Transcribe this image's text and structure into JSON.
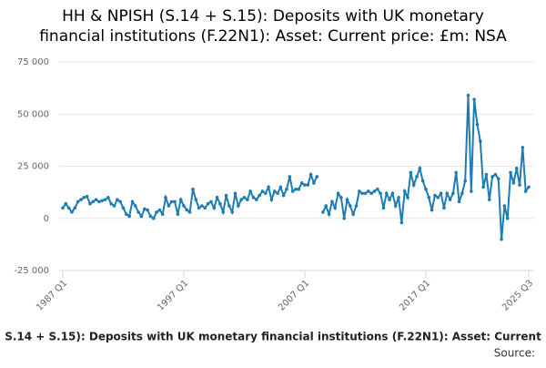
{
  "chart_data": {
    "type": "line",
    "title": [
      "HH & NPISH (S.14 + S.15): Deposits with UK monetary",
      "financial institutions (F.22N1): Asset: Current price: £m: NSA"
    ],
    "caption": "S.14 + S.15): Deposits with UK monetary financial institutions (F.22N1): Asset: Current",
    "source": "Source:",
    "categories": [
      "1987 Q1",
      null,
      null,
      null,
      null,
      null,
      null,
      null,
      null,
      null,
      null,
      null,
      null,
      null,
      null,
      null,
      null,
      null,
      null,
      null,
      null,
      null,
      null,
      null,
      null,
      null,
      null,
      null,
      null,
      null,
      null,
      null,
      null,
      null,
      null,
      null,
      null,
      null,
      null,
      null,
      "1997 Q1",
      null,
      null,
      null,
      null,
      null,
      null,
      null,
      null,
      null,
      null,
      null,
      null,
      null,
      null,
      null,
      null,
      null,
      null,
      null,
      null,
      null,
      null,
      null,
      null,
      null,
      null,
      null,
      null,
      null,
      null,
      null,
      null,
      null,
      null,
      null,
      null,
      null,
      null,
      null,
      "2007 Q1",
      null,
      null,
      null,
      null,
      null,
      null,
      null,
      null,
      null,
      null,
      null,
      null,
      null,
      null,
      null,
      null,
      null,
      null,
      null,
      null,
      null,
      null,
      null,
      null,
      null,
      null,
      null,
      null,
      null,
      null,
      null,
      null,
      null,
      null,
      null,
      null,
      null,
      null,
      null,
      "2017 Q1",
      null,
      null,
      null,
      null,
      null,
      null,
      null,
      null,
      null,
      null,
      null,
      null,
      null,
      null,
      null,
      null,
      null,
      null,
      null,
      null,
      null,
      null,
      null,
      null,
      null,
      null,
      null,
      null,
      null,
      null,
      null,
      null,
      null,
      "2025 Q3"
    ],
    "series": [
      {
        "name": "HH & NPISH deposits",
        "color": "#1d7cb3",
        "values": [
          5000,
          7000,
          5000,
          3000,
          5000,
          8000,
          9000,
          10000,
          10500,
          7000,
          8000,
          9000,
          8000,
          8500,
          9000,
          10000,
          7000,
          6000,
          9000,
          8000,
          5000,
          2000,
          1000,
          8000,
          6000,
          3000,
          1000,
          4500,
          4000,
          1000,
          0,
          3000,
          4000,
          2000,
          10000,
          6000,
          8000,
          8000,
          2000,
          9000,
          6000,
          4000,
          3000,
          14000,
          9000,
          5000,
          6000,
          5000,
          7000,
          8000,
          5000,
          10000,
          7000,
          3000,
          11000,
          6000,
          3000,
          12000,
          6000,
          9000,
          10000,
          9000,
          13000,
          10000,
          9000,
          11000,
          13000,
          12000,
          15000,
          9000,
          13000,
          12000,
          15000,
          11000,
          14000,
          20000,
          13000,
          14000,
          14000,
          17000,
          16000,
          16000,
          21000,
          17000,
          20000,
          null,
          3000,
          6000,
          2000,
          8000,
          5000,
          12000,
          10000,
          0,
          9000,
          6000,
          2000,
          6000,
          13000,
          12000,
          12000,
          13000,
          12000,
          13000,
          14000,
          12000,
          5000,
          12000,
          9000,
          12000,
          6000,
          10000,
          -2000,
          13000,
          10000,
          22000,
          16000,
          20000,
          24000,
          18000,
          14000,
          10000,
          4000,
          11000,
          10000,
          12000,
          5000,
          12000,
          9000,
          12000,
          22000,
          8000,
          12000,
          18000,
          59000,
          13000,
          57000,
          45000,
          37000,
          15000,
          21000,
          9000,
          20000,
          21000,
          19000,
          -10000,
          6000,
          0,
          22000,
          17000,
          24000,
          16000,
          34000,
          13000,
          15000
        ]
      }
    ],
    "ylim": [
      -25000,
      75000
    ],
    "yticks": [
      {
        "value": -25000,
        "label": "-25 000"
      },
      0,
      {
        "value": 25000,
        "label": "25 000"
      },
      {
        "value": 50000,
        "label": "50 000"
      },
      {
        "value": 75000,
        "label": "75 000"
      }
    ],
    "grid": true
  }
}
